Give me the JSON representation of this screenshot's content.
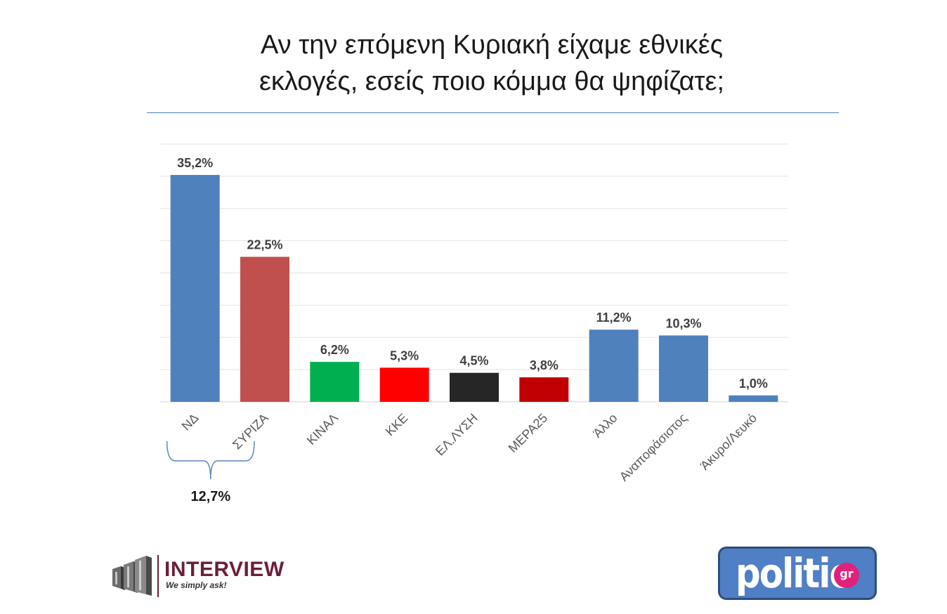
{
  "title": {
    "line1": "Αν την επόμενη Κυριακή είχαμε εθνικές",
    "line2": "εκλογές, εσείς ποιο κόμμα θα ψηφίζατε;"
  },
  "chart_data": {
    "type": "bar",
    "categories": [
      "ΝΔ",
      "ΣΥΡΙΖΑ",
      "ΚΙΝΑΛ",
      "ΚΚΕ",
      "ΕΛ.ΛΥΣΗ",
      "ΜΕΡΑ25",
      "Άλλο",
      "Αναποφάσιστος",
      "Άκυρο/Λευκό"
    ],
    "values": [
      35.2,
      22.5,
      6.2,
      5.3,
      4.5,
      3.8,
      11.2,
      10.3,
      1.0
    ],
    "value_labels": [
      "35,2%",
      "22,5%",
      "6,2%",
      "5,3%",
      "4,5%",
      "3,8%",
      "11,2%",
      "10,3%",
      "1,0%"
    ],
    "colors": [
      "#4f81bd",
      "#c0504d",
      "#00b050",
      "#ff0000",
      "#262626",
      "#c00000",
      "#4f81bd",
      "#4f81bd",
      "#4f81bd"
    ],
    "ylim": [
      0,
      40
    ],
    "grid": true,
    "bracket": {
      "from_category": "ΝΔ",
      "to_category": "ΣΥΡΙΖΑ",
      "label": "12,7%"
    }
  },
  "logos": {
    "interview": {
      "name": "INTERVIEW",
      "tagline": "We simply ask!",
      "color": "#6b1e3a"
    },
    "politic": {
      "word": "politic",
      "suffix": "gr",
      "background": "#4f7fc4",
      "badge_color": "#e0227d"
    }
  }
}
